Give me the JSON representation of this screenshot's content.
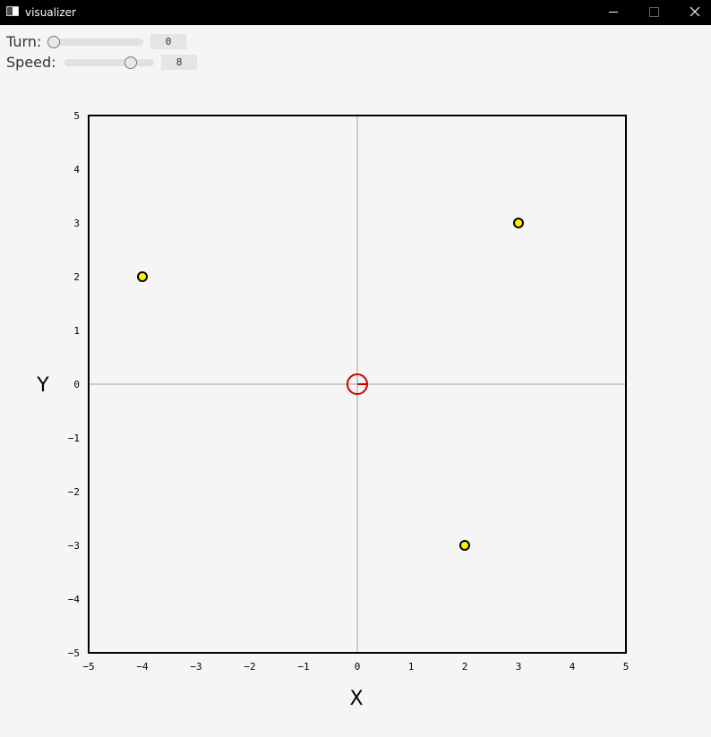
{
  "window": {
    "title": "visualizer"
  },
  "controls": {
    "turn": {
      "label": "Turn:",
      "value": "0",
      "min": 0,
      "max": 100,
      "fraction": 0.0
    },
    "speed": {
      "label": "Speed:",
      "value": "8",
      "min": 0,
      "max": 10,
      "fraction": 0.74
    }
  },
  "icons": {
    "minimize": "minimize-icon",
    "maximize": "maximize-icon",
    "close": "close-icon",
    "agent": "agent-icon",
    "target": "target-marker-icon"
  },
  "colors": {
    "agent": "#cc0000",
    "target_fill": "#ffee00",
    "target_stroke": "#000000",
    "grid": "#cccccc",
    "frame": "#000000"
  },
  "chart_data": {
    "type": "scatter",
    "xlabel": "X",
    "ylabel": "Y",
    "xlim": [
      -5,
      5
    ],
    "ylim": [
      -5,
      5
    ],
    "xticks": [
      "-5",
      "-4",
      "-3",
      "-2",
      "-1",
      "0",
      "1",
      "2",
      "3",
      "4",
      "5"
    ],
    "yticks": [
      "5",
      "4",
      "3",
      "2",
      "1",
      "0",
      "-1",
      "-2",
      "-3",
      "-4",
      "-5"
    ],
    "agent": {
      "x": 0,
      "y": 0,
      "heading_deg": 0
    },
    "targets": [
      {
        "x": -4,
        "y": 2
      },
      {
        "x": 3,
        "y": 3
      },
      {
        "x": 2,
        "y": -3
      }
    ]
  }
}
